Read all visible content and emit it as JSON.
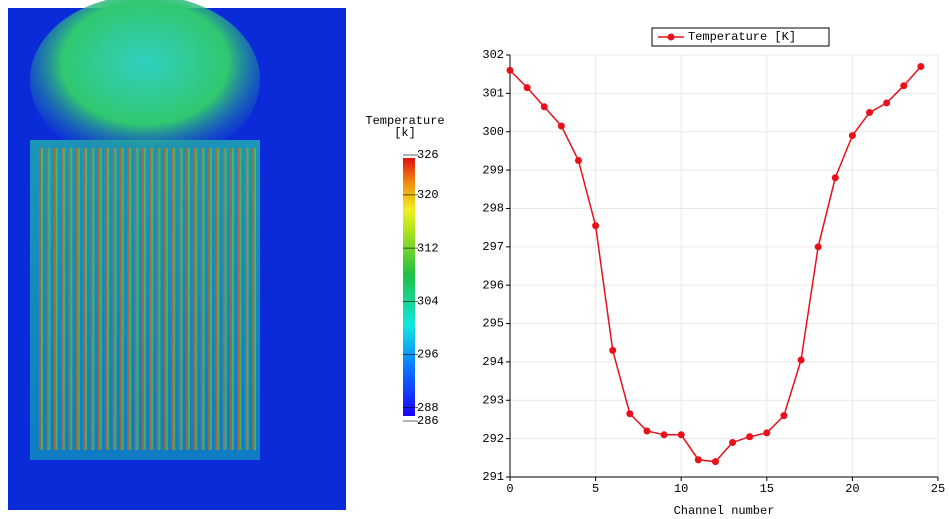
{
  "chart_data": {
    "type": "line",
    "xlabel": "Channel number",
    "x": [
      0,
      1,
      2,
      3,
      4,
      5,
      6,
      7,
      8,
      9,
      10,
      11,
      12,
      13,
      14,
      15,
      16,
      17,
      18,
      19,
      20,
      21,
      22,
      23,
      24
    ],
    "series": [
      {
        "name": "Temperature [K]",
        "color": "#e8101a",
        "values": [
          301.6,
          301.15,
          300.65,
          300.15,
          299.25,
          297.55,
          294.3,
          292.65,
          292.2,
          292.1,
          292.1,
          291.45,
          291.4,
          291.9,
          292.05,
          292.15,
          292.6,
          294.05,
          297.0,
          298.8,
          299.9,
          300.5,
          300.75,
          301.2,
          301.7
        ]
      }
    ],
    "xlim": [
      0,
      25
    ],
    "xticks": [
      0,
      5,
      10,
      15,
      20,
      25
    ],
    "ylim": [
      291,
      302
    ],
    "yticks": [
      291,
      292,
      293,
      294,
      295,
      296,
      297,
      298,
      299,
      300,
      301,
      302
    ],
    "grid": true,
    "legend": "top"
  },
  "colorbar": {
    "title": [
      "Temperature",
      "[k]"
    ],
    "range": [
      286,
      326
    ],
    "ticks": [
      326,
      320,
      312,
      304,
      296,
      288,
      286
    ]
  }
}
